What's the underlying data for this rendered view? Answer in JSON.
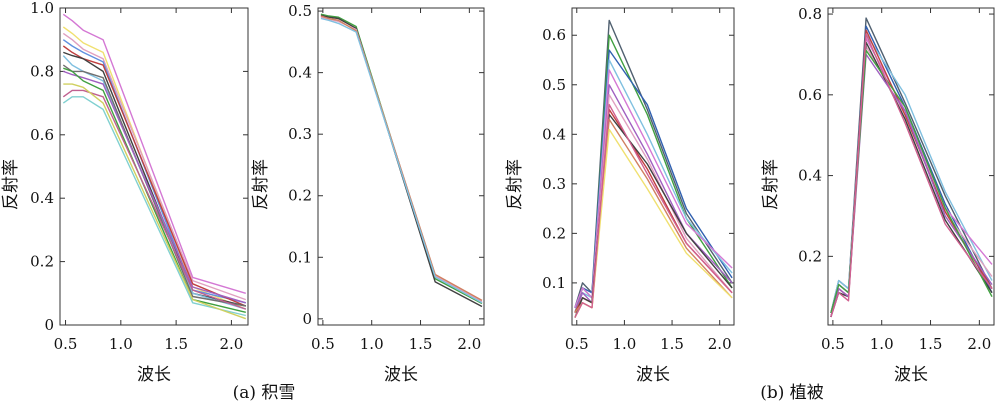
{
  "captions": [
    {
      "text": "(a) 积雪"
    },
    {
      "text": "(b) 植被"
    }
  ],
  "chart_data": [
    {
      "type": "line",
      "xlabel": "波长",
      "ylabel": "反射率",
      "xlim": [
        0.45,
        2.15
      ],
      "ylim": [
        0,
        1.0
      ],
      "xticks": [
        {
          "v": 0.5,
          "label": "0.5"
        },
        {
          "v": 1.0,
          "label": "1.0"
        },
        {
          "v": 1.5,
          "label": "1.5"
        },
        {
          "v": 2.0,
          "label": "2.0"
        }
      ],
      "yticks": [
        {
          "v": 0,
          "label": "0"
        },
        {
          "v": 0.2,
          "label": "0.2"
        },
        {
          "v": 0.4,
          "label": "0.4"
        },
        {
          "v": 0.6,
          "label": "0.6"
        },
        {
          "v": 0.8,
          "label": "0.8"
        },
        {
          "v": 1.0,
          "label": "1.0"
        }
      ],
      "x": [
        0.48,
        0.56,
        0.66,
        0.84,
        1.65,
        2.13
      ],
      "series": [
        {
          "color": "#d478d4",
          "values": [
            0.98,
            0.96,
            0.93,
            0.9,
            0.15,
            0.1
          ]
        },
        {
          "color": "#f0e070",
          "values": [
            0.94,
            0.92,
            0.89,
            0.86,
            0.12,
            0.05
          ]
        },
        {
          "color": "#e0a0c0",
          "values": [
            0.92,
            0.9,
            0.87,
            0.84,
            0.14,
            0.08
          ]
        },
        {
          "color": "#6090e0",
          "values": [
            0.9,
            0.88,
            0.86,
            0.83,
            0.11,
            0.07
          ]
        },
        {
          "color": "#c04040",
          "values": [
            0.88,
            0.86,
            0.84,
            0.82,
            0.13,
            0.06
          ]
        },
        {
          "color": "#404040",
          "values": [
            0.86,
            0.85,
            0.84,
            0.8,
            0.1,
            0.06
          ]
        },
        {
          "color": "#80c0e0",
          "values": [
            0.85,
            0.82,
            0.8,
            0.77,
            0.1,
            0.05
          ]
        },
        {
          "color": "#707070",
          "values": [
            0.82,
            0.8,
            0.8,
            0.78,
            0.09,
            0.06
          ]
        },
        {
          "color": "#a060c0",
          "values": [
            0.8,
            0.79,
            0.78,
            0.76,
            0.12,
            0.07
          ]
        },
        {
          "color": "#40a040",
          "values": [
            0.81,
            0.8,
            0.77,
            0.74,
            0.08,
            0.04
          ]
        },
        {
          "color": "#c06090",
          "values": [
            0.72,
            0.74,
            0.74,
            0.72,
            0.11,
            0.05
          ]
        },
        {
          "color": "#80d0d0",
          "values": [
            0.7,
            0.72,
            0.72,
            0.68,
            0.07,
            0.03
          ]
        },
        {
          "color": "#d0d060",
          "values": [
            0.76,
            0.76,
            0.75,
            0.7,
            0.08,
            0.02
          ]
        }
      ]
    },
    {
      "type": "line",
      "xlabel": "波长",
      "ylabel": "反射率",
      "xlim": [
        0.45,
        2.15
      ],
      "ylim": [
        -0.01,
        0.505
      ],
      "xticks": [
        {
          "v": 0.5,
          "label": "0.5"
        },
        {
          "v": 1.0,
          "label": "1.0"
        },
        {
          "v": 1.5,
          "label": "1.5"
        },
        {
          "v": 2.0,
          "label": "2.0"
        }
      ],
      "yticks": [
        {
          "v": 0,
          "label": "0"
        },
        {
          "v": 0.1,
          "label": "0.1"
        },
        {
          "v": 0.2,
          "label": "0.2"
        },
        {
          "v": 0.3,
          "label": "0.3"
        },
        {
          "v": 0.4,
          "label": "0.4"
        },
        {
          "v": 0.5,
          "label": "0.5"
        }
      ],
      "x": [
        0.48,
        0.56,
        0.66,
        0.84,
        1.65,
        2.13
      ],
      "series": [
        {
          "color": "#40a040",
          "values": [
            0.495,
            0.492,
            0.49,
            0.475,
            0.065,
            0.025
          ]
        },
        {
          "color": "#404040",
          "values": [
            0.493,
            0.49,
            0.488,
            0.472,
            0.06,
            0.02
          ]
        },
        {
          "color": "#e0a0c0",
          "values": [
            0.49,
            0.487,
            0.483,
            0.47,
            0.07,
            0.028
          ]
        },
        {
          "color": "#d08060",
          "values": [
            0.492,
            0.488,
            0.485,
            0.468,
            0.072,
            0.03
          ]
        },
        {
          "color": "#80c0e0",
          "values": [
            0.488,
            0.485,
            0.48,
            0.466,
            0.068,
            0.026
          ]
        }
      ]
    },
    {
      "type": "line",
      "xlabel": "波长",
      "ylabel": "反射率",
      "xlim": [
        0.45,
        2.15
      ],
      "ylim": [
        0.015,
        0.655
      ],
      "xticks": [
        {
          "v": 0.5,
          "label": "0.5"
        },
        {
          "v": 1.0,
          "label": "1.0"
        },
        {
          "v": 1.5,
          "label": "1.5"
        },
        {
          "v": 2.0,
          "label": "2.0"
        }
      ],
      "yticks": [
        {
          "v": 0.1,
          "label": "0.1"
        },
        {
          "v": 0.2,
          "label": "0.2"
        },
        {
          "v": 0.3,
          "label": "0.3"
        },
        {
          "v": 0.4,
          "label": "0.4"
        },
        {
          "v": 0.5,
          "label": "0.5"
        },
        {
          "v": 0.6,
          "label": "0.6"
        }
      ],
      "x": [
        0.48,
        0.56,
        0.66,
        0.84,
        1.24,
        1.65,
        2.13
      ],
      "series": [
        {
          "color": "#506070",
          "values": [
            0.05,
            0.1,
            0.08,
            0.63,
            0.45,
            0.24,
            0.1
          ]
        },
        {
          "color": "#40a040",
          "values": [
            0.04,
            0.09,
            0.07,
            0.6,
            0.44,
            0.23,
            0.09
          ]
        },
        {
          "color": "#3060b0",
          "values": [
            0.05,
            0.09,
            0.08,
            0.57,
            0.46,
            0.25,
            0.11
          ]
        },
        {
          "color": "#80c0e0",
          "values": [
            0.04,
            0.08,
            0.07,
            0.55,
            0.4,
            0.23,
            0.12
          ]
        },
        {
          "color": "#d478d4",
          "values": [
            0.05,
            0.09,
            0.07,
            0.53,
            0.38,
            0.22,
            0.13
          ]
        },
        {
          "color": "#a060c0",
          "values": [
            0.04,
            0.08,
            0.06,
            0.5,
            0.36,
            0.2,
            0.1
          ]
        },
        {
          "color": "#e0a0c0",
          "values": [
            0.04,
            0.07,
            0.06,
            0.48,
            0.35,
            0.19,
            0.08
          ]
        },
        {
          "color": "#c04040",
          "values": [
            0.04,
            0.07,
            0.06,
            0.45,
            0.33,
            0.18,
            0.08
          ]
        },
        {
          "color": "#404040",
          "values": [
            0.03,
            0.07,
            0.06,
            0.44,
            0.34,
            0.2,
            0.09
          ]
        },
        {
          "color": "#d08060",
          "values": [
            0.04,
            0.06,
            0.05,
            0.43,
            0.31,
            0.17,
            0.07
          ]
        },
        {
          "color": "#f0e070",
          "values": [
            0.03,
            0.06,
            0.05,
            0.41,
            0.29,
            0.16,
            0.07
          ]
        },
        {
          "color": "#d06090",
          "values": [
            0.03,
            0.06,
            0.05,
            0.46,
            0.32,
            0.18,
            0.08
          ]
        }
      ]
    },
    {
      "type": "line",
      "xlabel": "波长",
      "ylabel": "反射率",
      "xlim": [
        0.45,
        2.15
      ],
      "ylim": [
        0.03,
        0.815
      ],
      "xticks": [
        {
          "v": 0.5,
          "label": "0.5"
        },
        {
          "v": 1.0,
          "label": "1.0"
        },
        {
          "v": 1.5,
          "label": "1.5"
        },
        {
          "v": 2.0,
          "label": "2.0"
        }
      ],
      "yticks": [
        {
          "v": 0.2,
          "label": "0.2"
        },
        {
          "v": 0.4,
          "label": "0.4"
        },
        {
          "v": 0.6,
          "label": "0.6"
        },
        {
          "v": 0.8,
          "label": "0.8"
        }
      ],
      "x": [
        0.48,
        0.56,
        0.66,
        0.84,
        1.24,
        1.65,
        2.13
      ],
      "series": [
        {
          "color": "#506070",
          "values": [
            0.06,
            0.14,
            0.12,
            0.79,
            0.58,
            0.35,
            0.12
          ]
        },
        {
          "color": "#3060b0",
          "values": [
            0.05,
            0.13,
            0.11,
            0.77,
            0.57,
            0.33,
            0.11
          ]
        },
        {
          "color": "#80c0e0",
          "values": [
            0.06,
            0.14,
            0.12,
            0.75,
            0.6,
            0.36,
            0.14
          ]
        },
        {
          "color": "#d478d4",
          "values": [
            0.06,
            0.13,
            0.11,
            0.74,
            0.56,
            0.32,
            0.18
          ]
        },
        {
          "color": "#e0a0c0",
          "values": [
            0.05,
            0.12,
            0.1,
            0.72,
            0.55,
            0.31,
            0.15
          ]
        },
        {
          "color": "#c04040",
          "values": [
            0.05,
            0.12,
            0.1,
            0.76,
            0.55,
            0.31,
            0.12
          ]
        },
        {
          "color": "#404040",
          "values": [
            0.05,
            0.11,
            0.1,
            0.73,
            0.54,
            0.29,
            0.11
          ]
        },
        {
          "color": "#a060c0",
          "values": [
            0.05,
            0.12,
            0.1,
            0.7,
            0.56,
            0.3,
            0.13
          ]
        },
        {
          "color": "#40a040",
          "values": [
            0.06,
            0.13,
            0.11,
            0.71,
            0.57,
            0.32,
            0.1
          ]
        },
        {
          "color": "#d06090",
          "values": [
            0.05,
            0.11,
            0.09,
            0.75,
            0.53,
            0.28,
            0.12
          ]
        }
      ]
    }
  ]
}
